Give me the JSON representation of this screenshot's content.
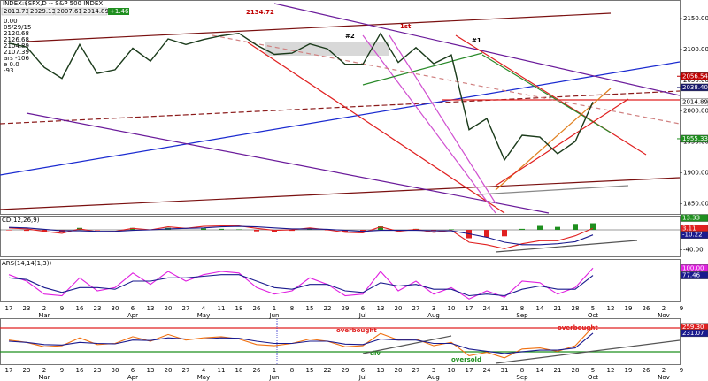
{
  "header": {
    "title": "INDEX:$SPX,D -- S&P 500 INDEX",
    "quote": [
      "2013.73",
      "2029.13",
      "2007.61",
      "2014.89"
    ],
    "change": "+1.46",
    "info": [
      "0.00",
      "05/29/15",
      "2120.68",
      "2126.68",
      "2104.89",
      "2107.39",
      "ars -106",
      "e 0.0",
      "-93"
    ]
  },
  "chart_data": [
    {
      "type": "line",
      "categories": [
        "17",
        "23",
        "2",
        "9",
        "16",
        "23",
        "30",
        "6",
        "13",
        "20",
        "27",
        "4",
        "11",
        "18",
        "26",
        "1",
        "8",
        "15",
        "22",
        "29",
        "6",
        "13",
        "20",
        "27",
        "3",
        "10",
        "17",
        "24",
        "31",
        "8",
        "14",
        "21",
        "28",
        "5",
        "12",
        "19",
        "26",
        "2",
        "9"
      ],
      "months": [
        null,
        null,
        "Mar",
        null,
        null,
        null,
        null,
        "Apr",
        null,
        null,
        null,
        "May",
        null,
        null,
        null,
        "Jun",
        null,
        null,
        null,
        null,
        "Jul",
        null,
        null,
        null,
        "Aug",
        null,
        null,
        null,
        null,
        "Sep",
        null,
        null,
        null,
        "Oct",
        null,
        null,
        null,
        "Nov",
        null
      ],
      "ylim": [
        1835,
        2170
      ],
      "yticks": [
        {
          "value": 2150,
          "label": "2150.00"
        },
        {
          "value": 2100,
          "label": "2100.00"
        },
        {
          "value": 2050,
          "label": "2050.00"
        },
        {
          "value": 2000,
          "label": "2000.00"
        },
        {
          "value": 1950,
          "label": "1950.00"
        },
        {
          "value": 1900,
          "label": "1900.00"
        },
        {
          "value": 1850,
          "label": "1850.00"
        }
      ],
      "series": [
        {
          "color": "#1a3a1a",
          "last_label": "2014.89",
          "label_bg": "#ffffff",
          "label_fg": "#000000",
          "values": [
            2110,
            2104,
            2071,
            2053,
            2108,
            2061,
            2067,
            2102,
            2081,
            2117,
            2108,
            2116,
            2122,
            2126,
            2107,
            2092,
            2094,
            2109,
            2101,
            2076,
            2076,
            2126,
            2079,
            2103,
            2077,
            2091,
            1970,
            1988,
            1921,
            1961,
            1958,
            1931,
            1951,
            2014.89,
            null,
            null,
            null,
            null,
            null
          ]
        }
      ],
      "flags": [
        {
          "value": 2056.54,
          "label": "2056.54",
          "color": "#c00000"
        },
        {
          "value": 2038.4,
          "label": "2038.40",
          "color": "#1a1a6e"
        },
        {
          "value": 1955.33,
          "label": "1955.33",
          "color": "#1f8f1f"
        }
      ],
      "annotations": [
        {
          "text": "2134.72",
          "color": "#c00000"
        },
        {
          "text": "#2",
          "color": "#000000"
        },
        {
          "text": "1st",
          "color": "#c00000"
        },
        {
          "text": "#1",
          "color": "#000000"
        }
      ]
    },
    {
      "type": "line",
      "title": "CD(12,26,9)",
      "ylim": [
        -50,
        25
      ],
      "yticks": [
        {
          "value": -40,
          "label": "-40.00"
        }
      ],
      "histogram": {
        "up_color": "#1f8f1f",
        "down_color": "#e02020",
        "last_label": "13.33",
        "values": [
          -1,
          -2,
          -4,
          -5,
          4,
          -1,
          0,
          4,
          0,
          4,
          0,
          3,
          2,
          1,
          -3,
          -5,
          -2,
          2,
          -1,
          -4,
          -3,
          7,
          -2,
          2,
          -3,
          1,
          -17,
          -15,
          -13,
          2,
          8,
          6,
          12,
          13.33,
          null,
          null,
          null,
          null,
          null
        ]
      },
      "series": [
        {
          "color": "#e02020",
          "last_label": "3.11",
          "label_bg": "#e02020",
          "label_fg": "#ffffff",
          "values": [
            4,
            2,
            -3,
            -7,
            2,
            -4,
            -3,
            3,
            0,
            6,
            3,
            7,
            8,
            8,
            3,
            -1,
            0,
            4,
            0,
            -5,
            -6,
            6,
            -3,
            1,
            -5,
            -1,
            -25,
            -30,
            -38,
            -28,
            -22,
            -22,
            -12,
            3.11,
            null,
            null,
            null,
            null,
            null
          ]
        },
        {
          "color": "#1a1a8e",
          "last_label": "-10.22",
          "label_bg": "#1a1a8e",
          "label_fg": "#ffffff",
          "values": [
            5,
            4,
            1,
            -2,
            -2,
            -3,
            -3,
            -1,
            0,
            2,
            3,
            4,
            6,
            7,
            6,
            4,
            2,
            2,
            1,
            -1,
            -3,
            -1,
            -1,
            -1,
            -2,
            -2,
            -8,
            -15,
            -25,
            -30,
            -30,
            -28,
            -24,
            -10.22,
            null,
            null,
            null,
            null,
            null
          ]
        }
      ]
    },
    {
      "type": "line",
      "title": "ARS(14,14(1,3))",
      "ylim": [
        0,
        120
      ],
      "series": [
        {
          "color": "#e020e0",
          "last_label": "100.00",
          "label_bg": "#e020e0",
          "label_fg": "#ffffff",
          "values": [
            80,
            60,
            20,
            15,
            70,
            30,
            40,
            85,
            50,
            90,
            60,
            80,
            90,
            85,
            40,
            20,
            30,
            70,
            50,
            15,
            20,
            90,
            30,
            60,
            20,
            40,
            5,
            30,
            10,
            60,
            55,
            20,
            40,
            100,
            null,
            null,
            null,
            null,
            null
          ]
        },
        {
          "color": "#1a1a8e",
          "last_label": "77.46",
          "label_bg": "#1a1a8e",
          "label_fg": "#ffffff",
          "values": [
            70,
            65,
            40,
            25,
            40,
            40,
            35,
            60,
            60,
            70,
            70,
            75,
            80,
            80,
            60,
            40,
            35,
            50,
            50,
            30,
            25,
            55,
            45,
            50,
            35,
            35,
            15,
            20,
            15,
            35,
            45,
            35,
            35,
            77.46,
            null,
            null,
            null,
            null,
            null
          ]
        }
      ]
    },
    {
      "type": "line",
      "ylim": [
        100,
        290
      ],
      "series": [
        {
          "color": "#f07010",
          "last_label": "259.30",
          "label_bg": "#e02020",
          "label_fg": "#ffffff",
          "values": [
            200,
            190,
            170,
            175,
            210,
            180,
            185,
            215,
            195,
            225,
            200,
            210,
            215,
            205,
            180,
            175,
            185,
            205,
            195,
            170,
            175,
            230,
            200,
            205,
            175,
            190,
            130,
            145,
            120,
            160,
            165,
            150,
            175,
            259.3,
            null,
            null,
            null,
            null,
            null
          ]
        },
        {
          "color": "#1a1a8e",
          "last_label": "231.07",
          "label_bg": "#1a1a8e",
          "label_fg": "#ffffff",
          "values": [
            195,
            190,
            180,
            178,
            190,
            185,
            183,
            200,
            198,
            210,
            205,
            205,
            210,
            208,
            195,
            185,
            185,
            195,
            195,
            182,
            180,
            205,
            200,
            200,
            185,
            185,
            160,
            150,
            140,
            148,
            155,
            155,
            165,
            231.07,
            null,
            null,
            null,
            null,
            null
          ]
        }
      ],
      "annotations": [
        {
          "text": "overbought",
          "color": "#e02020"
        },
        {
          "text": "overbought",
          "color": "#e02020"
        },
        {
          "text": "div",
          "color": "#1f8f1f"
        },
        {
          "text": "oversold",
          "color": "#1f8f1f"
        }
      ]
    }
  ]
}
